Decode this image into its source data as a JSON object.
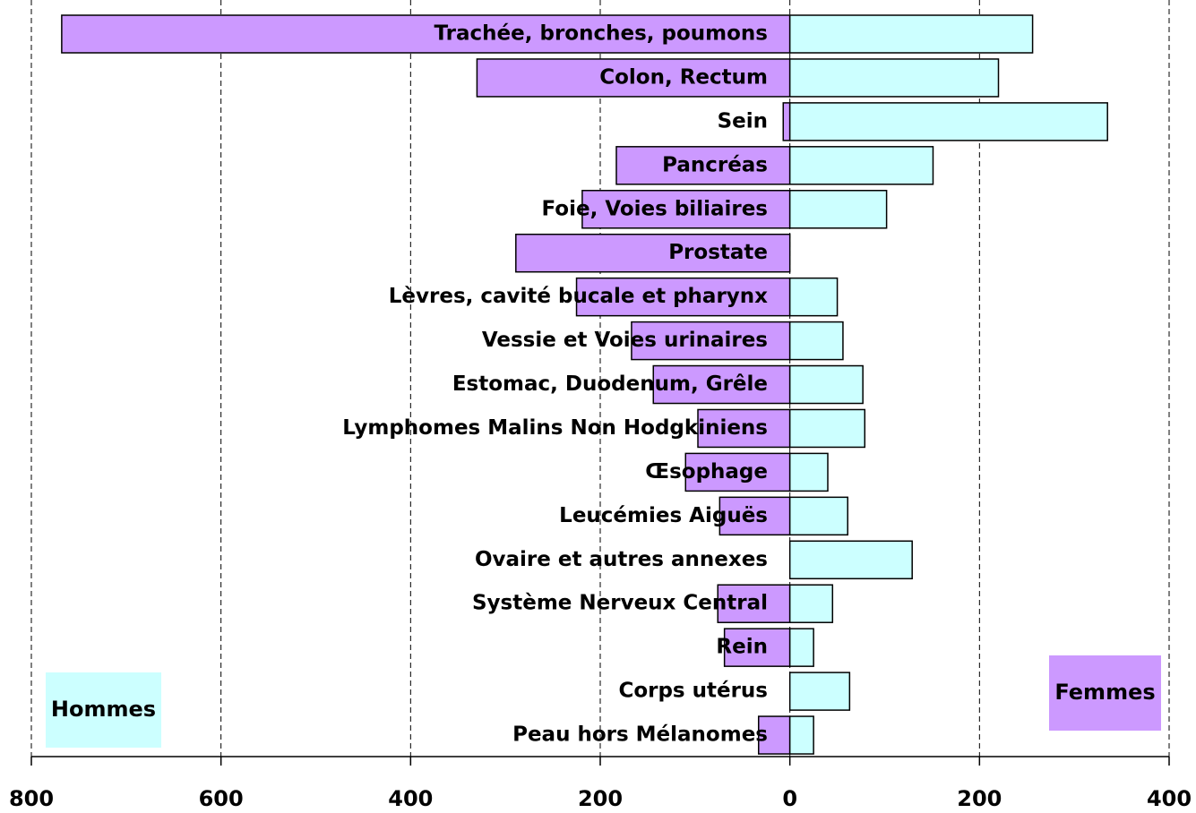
{
  "chart_data": {
    "type": "butterfly",
    "categories": [
      "Trachée, bronches, poumons",
      "Colon, Rectum",
      "Sein",
      "Pancréas",
      "Foie, Voies biliaires",
      "Prostate",
      "Lèvres, cavité bucale et pharynx",
      "Vessie et Voies urinaires",
      "Estomac, Duodenum, Grêle",
      "Lymphomes Malins Non Hodgkiniens",
      "Œsophage",
      "Leucémies Aiguës",
      "Ovaire et autres annexes",
      "Système Nerveux Central",
      "Rein",
      "Corps utérus",
      "Peau hors Mélanomes"
    ],
    "series": [
      {
        "name": "Hommes",
        "color": "#cc99ff",
        "legend_color": "#ccffff",
        "values": [
          -768,
          -330,
          -7,
          -183,
          -219,
          -289,
          -225,
          -167,
          -144,
          -97,
          -110,
          -74,
          0,
          -76,
          -69,
          0,
          -33
        ]
      },
      {
        "name": "Femmes",
        "color": "#ccffff",
        "legend_color": "#cc99ff",
        "values": [
          256,
          220,
          335,
          151,
          102,
          0,
          50,
          56,
          77,
          79,
          40,
          61,
          129,
          45,
          25,
          63,
          25
        ]
      }
    ],
    "xlim": [
      -800,
      400
    ],
    "xticks": [
      {
        "value": -800,
        "label": "800"
      },
      {
        "value": -600,
        "label": "600"
      },
      {
        "value": -400,
        "label": "400"
      },
      {
        "value": -200,
        "label": "200"
      },
      0,
      200,
      400
    ],
    "grid": true
  }
}
